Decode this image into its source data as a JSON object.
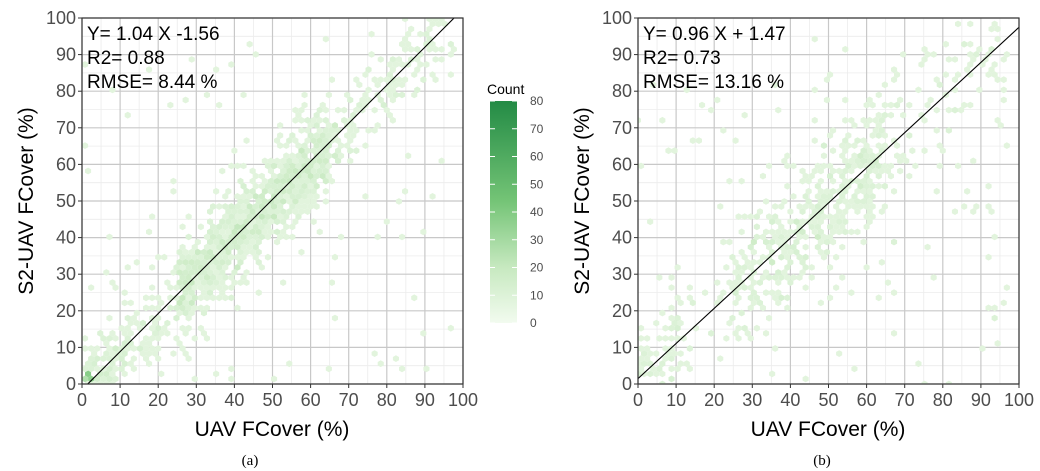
{
  "chart_data": [
    {
      "type": "heatmap",
      "subtype": "hexbin-scatter",
      "caption": "(a)",
      "xlabel": "UAV FCover (%)",
      "ylabel": "S2-UAV FCover (%)",
      "xlim": [
        0,
        100
      ],
      "ylim": [
        0,
        100
      ],
      "x_ticks": [
        "0",
        "10",
        "20",
        "30",
        "40",
        "50",
        "60",
        "70",
        "80",
        "90",
        "100"
      ],
      "y_ticks": [
        "0",
        "10",
        "20",
        "30",
        "40",
        "50",
        "60",
        "70",
        "80",
        "90",
        "100"
      ],
      "grid": true,
      "annotations": [
        "Y= 1.04 X  -1.56",
        "R2= 0.88",
        "RMSE= 8.44 %"
      ],
      "regression_line": {
        "slope": 1.04,
        "intercept": -1.56
      },
      "legend": {
        "title": "Count",
        "position": "right",
        "labels": [
          "80",
          "70",
          "60",
          "50",
          "40",
          "30",
          "20",
          "10",
          "0"
        ],
        "range": [
          0,
          80
        ],
        "colors": [
          "#f2fbef",
          "#238b45"
        ]
      }
    },
    {
      "type": "heatmap",
      "subtype": "hexbin-scatter",
      "caption": "(b)",
      "xlabel": "UAV FCover (%)",
      "ylabel": "S2-UAV FCover (%)",
      "xlim": [
        0,
        100
      ],
      "ylim": [
        0,
        100
      ],
      "x_ticks": [
        "0",
        "10",
        "20",
        "30",
        "40",
        "50",
        "60",
        "70",
        "80",
        "90",
        "100"
      ],
      "y_ticks": [
        "0",
        "10",
        "20",
        "30",
        "40",
        "50",
        "60",
        "70",
        "80",
        "90",
        "100"
      ],
      "grid": true,
      "annotations": [
        "Y= 0.96 X + 1.47",
        "R2= 0.73",
        "RMSE= 13.16 %"
      ],
      "regression_line": {
        "slope": 0.96,
        "intercept": 1.47
      }
    }
  ]
}
